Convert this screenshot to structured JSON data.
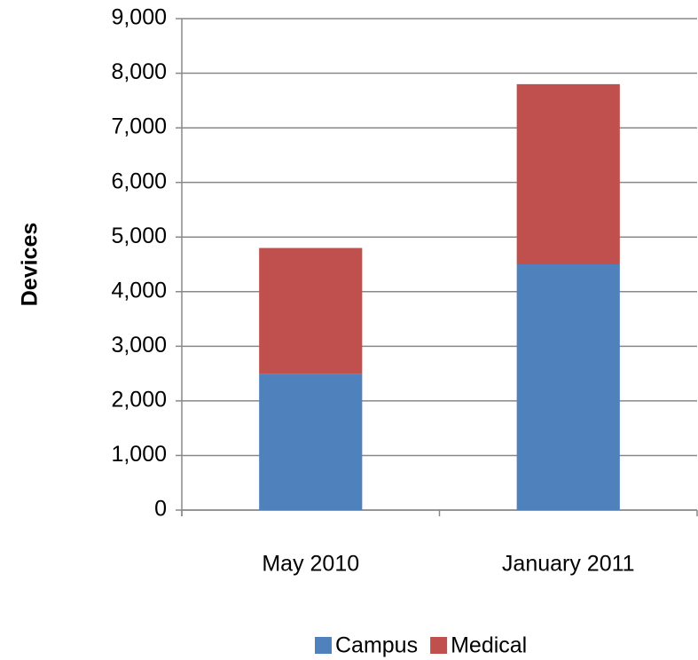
{
  "chart_data": {
    "type": "stacked_bar",
    "ylabel": "Devices",
    "categories": [
      "May 2010",
      "January 2011"
    ],
    "series": [
      {
        "name": "Campus",
        "color": "#4f81bd",
        "values": [
          2500,
          4500
        ]
      },
      {
        "name": "Medical",
        "color": "#c0504d",
        "values": [
          2300,
          3300
        ]
      }
    ],
    "ylim": [
      0,
      9000
    ],
    "yticks": [
      0,
      {
        "value": 1000,
        "label": "1,000"
      },
      {
        "value": 2000,
        "label": "2,000"
      },
      {
        "value": 3000,
        "label": "3,000"
      },
      {
        "value": 4000,
        "label": "4,000"
      },
      {
        "value": 5000,
        "label": "5,000"
      },
      {
        "value": 6000,
        "label": "6,000"
      },
      {
        "value": 7000,
        "label": "7,000"
      },
      {
        "value": 8000,
        "label": "8,000"
      },
      {
        "value": 9000,
        "label": "9,000"
      }
    ],
    "grid": true,
    "legend": "bottom"
  }
}
